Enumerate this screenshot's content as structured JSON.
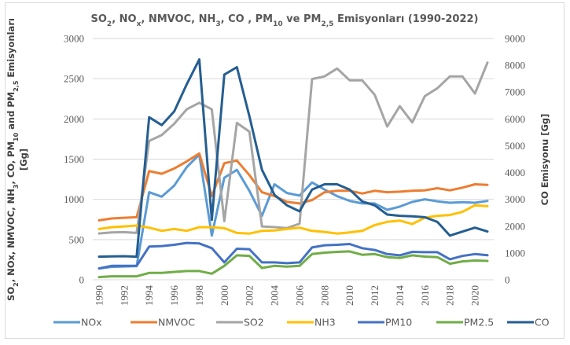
{
  "chart_data": {
    "type": "line",
    "title": "SO2, NOx, NMVOC, NH3, CO , PM10 ve PM2,5 Emisyonları (1990-2022)",
    "title_parts": [
      {
        "t": "SO",
        "sub": false
      },
      {
        "t": "2",
        "sub": true
      },
      {
        "t": ", NO",
        "sub": false
      },
      {
        "t": "x",
        "sub": true
      },
      {
        "t": ", NMVOC, NH",
        "sub": false
      },
      {
        "t": "3",
        "sub": true
      },
      {
        "t": ", CO , PM",
        "sub": false
      },
      {
        "t": "10",
        "sub": true
      },
      {
        "t": "  ve PM",
        "sub": false
      },
      {
        "t": "2,5",
        "sub": true
      },
      {
        "t": " Emisyonları (1990-2022)",
        "sub": false
      }
    ],
    "ylabel": "SO2, NOx, NMVOC, NH3, CO, PM10 and PM2,5 Emisyonları [Gg]",
    "ylabel_line1_parts": [
      {
        "t": "SO",
        "sub": false
      },
      {
        "t": "2",
        "sub": true
      },
      {
        "t": ", NOx, NMVOC, NH",
        "sub": false
      },
      {
        "t": "3",
        "sub": true
      },
      {
        "t": ", CO, PM",
        "sub": false
      },
      {
        "t": "10",
        "sub": true
      },
      {
        "t": "  and PM",
        "sub": false
      },
      {
        "t": "2,5",
        "sub": true
      },
      {
        "t": " Emisyonları",
        "sub": false
      }
    ],
    "ylabel_line2": "[Gg]",
    "y2label": "CO Emisyonu [Gg]",
    "xlabel": "",
    "ylim": [
      0,
      3000
    ],
    "y2lim": [
      0,
      9000
    ],
    "yticks": [
      0,
      500,
      1000,
      1500,
      2000,
      2500,
      3000
    ],
    "y2ticks": [
      0,
      1000,
      2000,
      3000,
      4000,
      5000,
      6000,
      7000,
      8000,
      9000
    ],
    "x": [
      1990,
      1991,
      1992,
      1993,
      1994,
      1995,
      1996,
      1997,
      1998,
      1999,
      2000,
      2001,
      2002,
      2003,
      2004,
      2005,
      2006,
      2007,
      2008,
      2009,
      2010,
      2011,
      2012,
      2013,
      2014,
      2015,
      2016,
      2017,
      2018,
      2019,
      2020,
      2021
    ],
    "xtick_labels": [
      "1990",
      "1992",
      "1994",
      "1996",
      "1998",
      "2000",
      "2002",
      "2004",
      "2006",
      "2008",
      "2010",
      "2012",
      "2014",
      "2016",
      "2018",
      "2020"
    ],
    "grid": true,
    "legend_position": "bottom",
    "series": [
      {
        "name": "NOx",
        "axis": "left",
        "color": "#5b9bd5",
        "values": [
          141,
          160,
          165,
          170,
          1089,
          1033,
          1171,
          1400,
          1557,
          549,
          1269,
          1367,
          1106,
          795,
          1187,
          1079,
          1047,
          1210,
          1122,
          1040,
          981,
          949,
          949,
          870,
          910,
          968,
          1001,
          975,
          958,
          965,
          958,
          980
        ]
      },
      {
        "name": "NMVOC",
        "axis": "left",
        "color": "#ed7d31",
        "values": [
          739,
          762,
          771,
          778,
          1351,
          1318,
          1384,
          1472,
          1570,
          1040,
          1449,
          1482,
          1302,
          1089,
          1040,
          968,
          949,
          991,
          1089,
          1106,
          1106,
          1073,
          1106,
          1089,
          1095,
          1106,
          1112,
          1138,
          1112,
          1145,
          1187,
          1180
        ]
      },
      {
        "name": "SO2",
        "axis": "left",
        "color": "#a5a5a5",
        "values": [
          576,
          589,
          592,
          582,
          1727,
          1799,
          1940,
          2120,
          2201,
          2120,
          729,
          1950,
          1842,
          664,
          655,
          643,
          697,
          2496,
          2529,
          2627,
          2480,
          2480,
          2299,
          1907,
          2159,
          1956,
          2283,
          2381,
          2529,
          2529,
          2316,
          2700
        ]
      },
      {
        "name": "NH3",
        "axis": "left",
        "color": "#ffc000",
        "values": [
          631,
          654,
          664,
          674,
          648,
          609,
          631,
          609,
          654,
          654,
          641,
          582,
          575,
          608,
          613,
          631,
          648,
          608,
          595,
          575,
          588,
          608,
          680,
          720,
          736,
          693,
          772,
          795,
          805,
          844,
          926,
          915
        ]
      },
      {
        "name": "PM10",
        "axis": "left",
        "color": "#4472c4",
        "values": [
          141,
          173,
          173,
          173,
          412,
          419,
          435,
          458,
          451,
          393,
          216,
          386,
          380,
          216,
          216,
          206,
          216,
          402,
          429,
          435,
          445,
          393,
          370,
          320,
          304,
          347,
          343,
          343,
          255,
          296,
          320,
          305
        ]
      },
      {
        "name": "PM2.5",
        "axis": "left",
        "color": "#70ad47",
        "values": [
          33,
          43,
          43,
          43,
          85,
          85,
          98,
          108,
          108,
          75,
          173,
          304,
          297,
          147,
          173,
          164,
          173,
          320,
          337,
          347,
          353,
          311,
          320,
          281,
          271,
          304,
          288,
          281,
          199,
          229,
          239,
          235
        ]
      },
      {
        "name": "CO",
        "axis": "right",
        "color": "#255e91",
        "values": [
          862,
          870,
          880,
          862,
          6063,
          5770,
          6280,
          7290,
          8220,
          2238,
          7654,
          7929,
          6100,
          4100,
          3170,
          2777,
          2553,
          3365,
          3562,
          3562,
          3365,
          2923,
          2776,
          2434,
          2385,
          2370,
          2335,
          2159,
          1648,
          1796,
          1943,
          1800
        ]
      }
    ]
  }
}
